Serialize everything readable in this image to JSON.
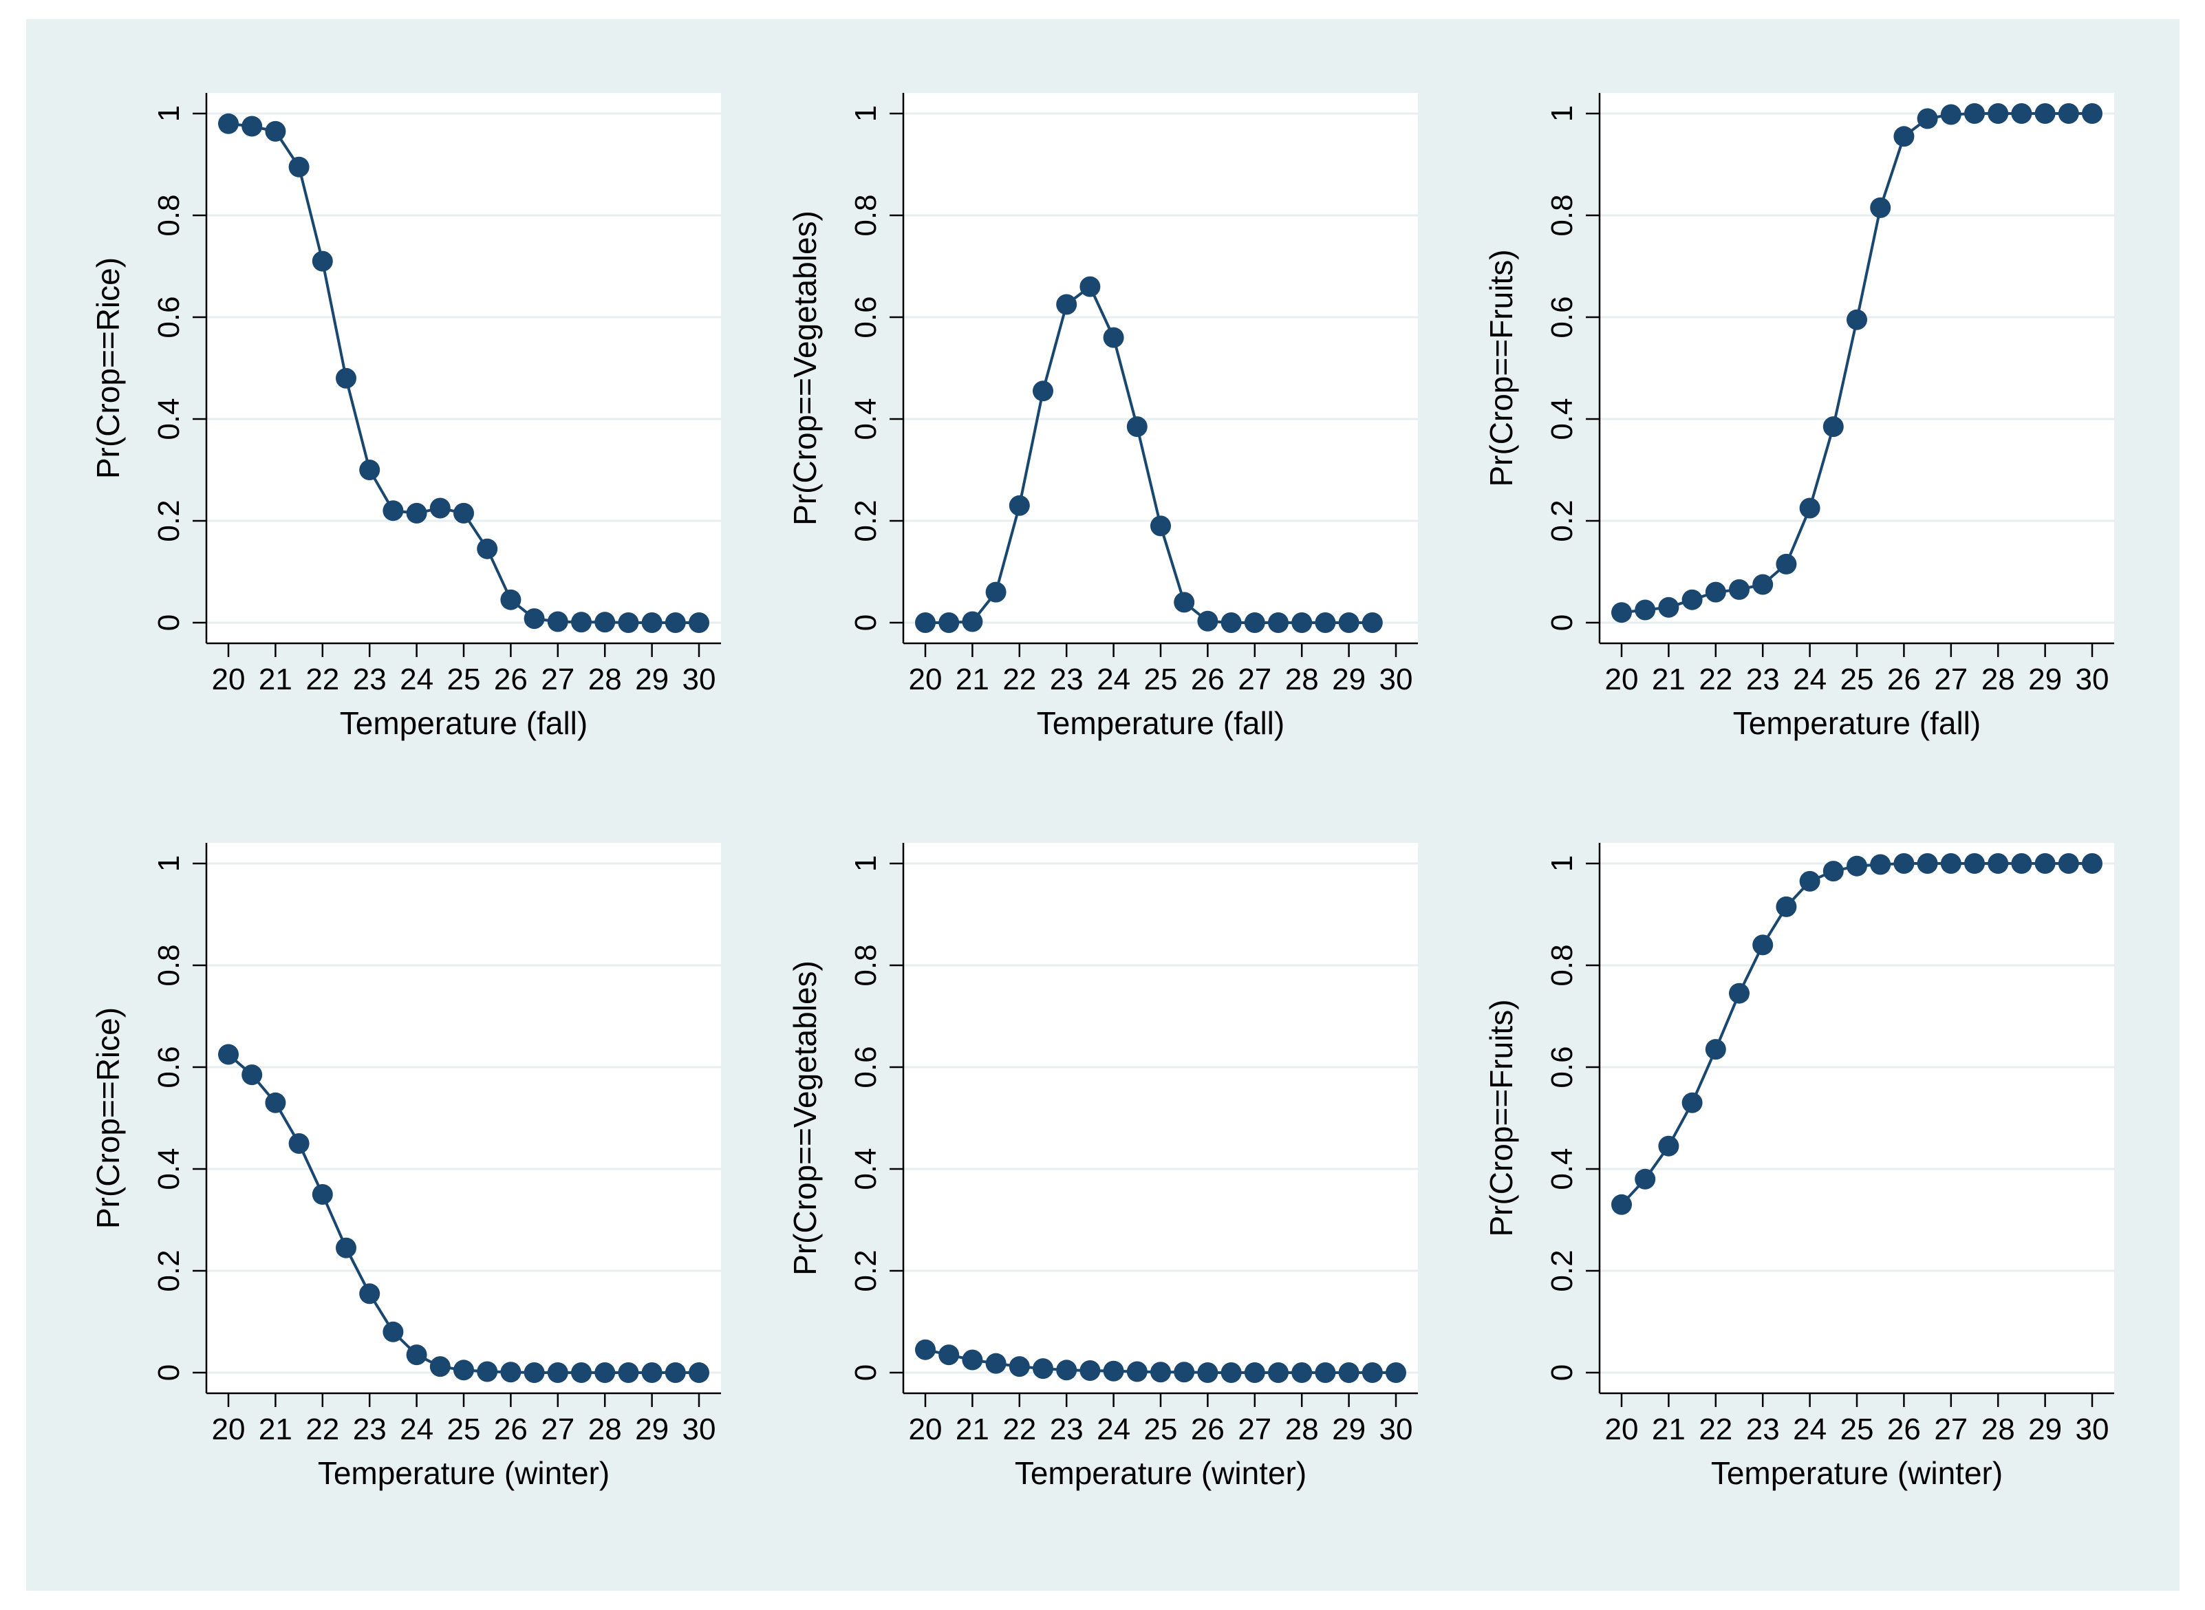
{
  "colors": {
    "figure_background": "#e8f1f2",
    "plot_background": "#ffffff",
    "series": "#1a476f",
    "gridline": "#e6eef0",
    "axis": "#000000"
  },
  "chart_data": [
    {
      "type": "line",
      "markers": true,
      "position": "top-left",
      "xlabel": "Temperature (fall)",
      "ylabel": "Pr(Crop==Rice)",
      "xlim": [
        20,
        30
      ],
      "ylim": [
        0,
        1
      ],
      "xticks": [
        20,
        21,
        22,
        23,
        24,
        25,
        26,
        27,
        28,
        29,
        30
      ],
      "yticks": [
        0,
        0.2,
        0.4,
        0.6,
        0.8,
        1
      ],
      "ytick_labels": [
        "0",
        "0.2",
        "0.4",
        "0.6",
        "0.8",
        "1"
      ],
      "grid": true,
      "x": [
        20,
        20.5,
        21,
        21.5,
        22,
        22.5,
        23,
        23.5,
        24,
        24.5,
        25,
        25.5,
        26,
        26.5,
        27,
        27.5,
        28,
        28.5,
        29,
        29.5,
        30
      ],
      "y": [
        0.98,
        0.975,
        0.965,
        0.895,
        0.71,
        0.48,
        0.3,
        0.22,
        0.215,
        0.225,
        0.215,
        0.145,
        0.045,
        0.008,
        0.002,
        0.001,
        0.001,
        0,
        0,
        0,
        0
      ]
    },
    {
      "type": "line",
      "markers": true,
      "position": "top-center",
      "xlabel": "Temperature (fall)",
      "ylabel": "Pr(Crop==Vegetables)",
      "xlim": [
        20,
        30
      ],
      "ylim": [
        0,
        1
      ],
      "xticks": [
        20,
        21,
        22,
        23,
        24,
        25,
        26,
        27,
        28,
        29,
        30
      ],
      "yticks": [
        0,
        0.2,
        0.4,
        0.6,
        0.8,
        1
      ],
      "ytick_labels": [
        "0",
        "0.2",
        "0.4",
        "0.6",
        "0.8",
        "1"
      ],
      "grid": true,
      "x": [
        20,
        20.5,
        21,
        21.5,
        22,
        22.5,
        23,
        23.5,
        24,
        24.5,
        25,
        25.5,
        26,
        26.5,
        27,
        27.5,
        28,
        28.5,
        29,
        29.5
      ],
      "y": [
        0,
        0,
        0.002,
        0.06,
        0.23,
        0.455,
        0.625,
        0.66,
        0.56,
        0.385,
        0.19,
        0.04,
        0.003,
        0,
        0,
        0,
        0,
        0,
        0,
        0
      ]
    },
    {
      "type": "line",
      "markers": true,
      "position": "top-right",
      "xlabel": "Temperature (fall)",
      "ylabel": "Pr(Crop==Fruits)",
      "xlim": [
        20,
        30
      ],
      "ylim": [
        0,
        1
      ],
      "xticks": [
        20,
        21,
        22,
        23,
        24,
        25,
        26,
        27,
        28,
        29,
        30
      ],
      "yticks": [
        0,
        0.2,
        0.4,
        0.6,
        0.8,
        1
      ],
      "ytick_labels": [
        "0",
        "0.2",
        "0.4",
        "0.6",
        "0.8",
        "1"
      ],
      "grid": true,
      "x": [
        20,
        20.5,
        21,
        21.5,
        22,
        22.5,
        23,
        23.5,
        24,
        24.5,
        25,
        25.5,
        26,
        26.5,
        27,
        27.5,
        28,
        28.5,
        29,
        29.5,
        30
      ],
      "y": [
        0.02,
        0.025,
        0.03,
        0.045,
        0.06,
        0.065,
        0.075,
        0.115,
        0.225,
        0.385,
        0.595,
        0.815,
        0.955,
        0.99,
        0.998,
        1,
        1,
        1,
        1,
        1,
        1
      ]
    },
    {
      "type": "line",
      "markers": true,
      "position": "bottom-left",
      "xlabel": "Temperature (winter)",
      "ylabel": "Pr(Crop==Rice)",
      "xlim": [
        20,
        30
      ],
      "ylim": [
        0,
        1
      ],
      "xticks": [
        20,
        21,
        22,
        23,
        24,
        25,
        26,
        27,
        28,
        29,
        30
      ],
      "yticks": [
        0,
        0.2,
        0.4,
        0.6,
        0.8,
        1
      ],
      "ytick_labels": [
        "0",
        "0.2",
        "0.4",
        "0.6",
        "0.8",
        "1"
      ],
      "grid": true,
      "x": [
        20,
        20.5,
        21,
        21.5,
        22,
        22.5,
        23,
        23.5,
        24,
        24.5,
        25,
        25.5,
        26,
        26.5,
        27,
        27.5,
        28,
        28.5,
        29,
        29.5,
        30
      ],
      "y": [
        0.625,
        0.585,
        0.53,
        0.45,
        0.35,
        0.245,
        0.155,
        0.08,
        0.035,
        0.012,
        0.005,
        0.002,
        0.001,
        0,
        0,
        0,
        0,
        0,
        0,
        0,
        0
      ]
    },
    {
      "type": "line",
      "markers": true,
      "position": "bottom-center",
      "xlabel": "Temperature (winter)",
      "ylabel": "Pr(Crop==Vegetables)",
      "xlim": [
        20,
        30
      ],
      "ylim": [
        0,
        1
      ],
      "xticks": [
        20,
        21,
        22,
        23,
        24,
        25,
        26,
        27,
        28,
        29,
        30
      ],
      "yticks": [
        0,
        0.2,
        0.4,
        0.6,
        0.8,
        1
      ],
      "ytick_labels": [
        "0",
        "0.2",
        "0.4",
        "0.6",
        "0.8",
        "1"
      ],
      "grid": true,
      "x": [
        20,
        20.5,
        21,
        21.5,
        22,
        22.5,
        23,
        23.5,
        24,
        24.5,
        25,
        25.5,
        26,
        26.5,
        27,
        27.5,
        28,
        28.5,
        29,
        29.5,
        30
      ],
      "y": [
        0.045,
        0.035,
        0.025,
        0.018,
        0.012,
        0.008,
        0.005,
        0.004,
        0.003,
        0.002,
        0.001,
        0.001,
        0,
        0,
        0,
        0,
        0,
        0,
        0,
        0,
        0
      ]
    },
    {
      "type": "line",
      "markers": true,
      "position": "bottom-right",
      "xlabel": "Temperature (winter)",
      "ylabel": "Pr(Crop==Fruits)",
      "xlim": [
        20,
        30
      ],
      "ylim": [
        0,
        1
      ],
      "xticks": [
        20,
        21,
        22,
        23,
        24,
        25,
        26,
        27,
        28,
        29,
        30
      ],
      "yticks": [
        0,
        0.2,
        0.4,
        0.6,
        0.8,
        1
      ],
      "ytick_labels": [
        "0",
        "0.2",
        "0.4",
        "0.6",
        "0.8",
        "1"
      ],
      "grid": true,
      "x": [
        20,
        20.5,
        21,
        21.5,
        22,
        22.5,
        23,
        23.5,
        24,
        24.5,
        25,
        25.5,
        26,
        26.5,
        27,
        27.5,
        28,
        28.5,
        29,
        29.5,
        30
      ],
      "y": [
        0.33,
        0.38,
        0.445,
        0.53,
        0.635,
        0.745,
        0.84,
        0.915,
        0.965,
        0.985,
        0.995,
        0.998,
        1,
        1,
        1,
        1,
        1,
        1,
        1,
        1,
        1
      ]
    }
  ]
}
